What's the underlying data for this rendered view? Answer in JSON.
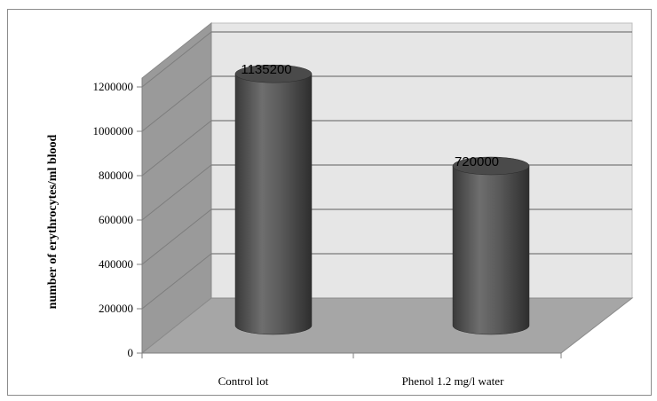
{
  "chart_data": {
    "type": "bar",
    "style": "3d-cylinder",
    "categories": [
      "Control lot",
      "Phenol 1.2 mg/l water"
    ],
    "values": [
      1135200,
      720000
    ],
    "data_labels": [
      "1135200",
      "720000"
    ],
    "title": "",
    "xlabel": "",
    "ylabel": "number of erythrocytes/ml blood",
    "ylim": [
      0,
      1200000
    ],
    "yticks": [
      0,
      200000,
      400000,
      600000,
      800000,
      1000000,
      1200000
    ],
    "ytick_labels": [
      "0",
      "200000",
      "400000",
      "600000",
      "800000",
      "1000000",
      "1200000"
    ],
    "grid": true,
    "legend": "none",
    "colors": {
      "bar": "#5a5a5a",
      "back_wall": "#e6e6e6",
      "side_wall": "#9a9a9a",
      "floor": "#a6a6a6",
      "gridline": "#7a7a7a"
    }
  }
}
